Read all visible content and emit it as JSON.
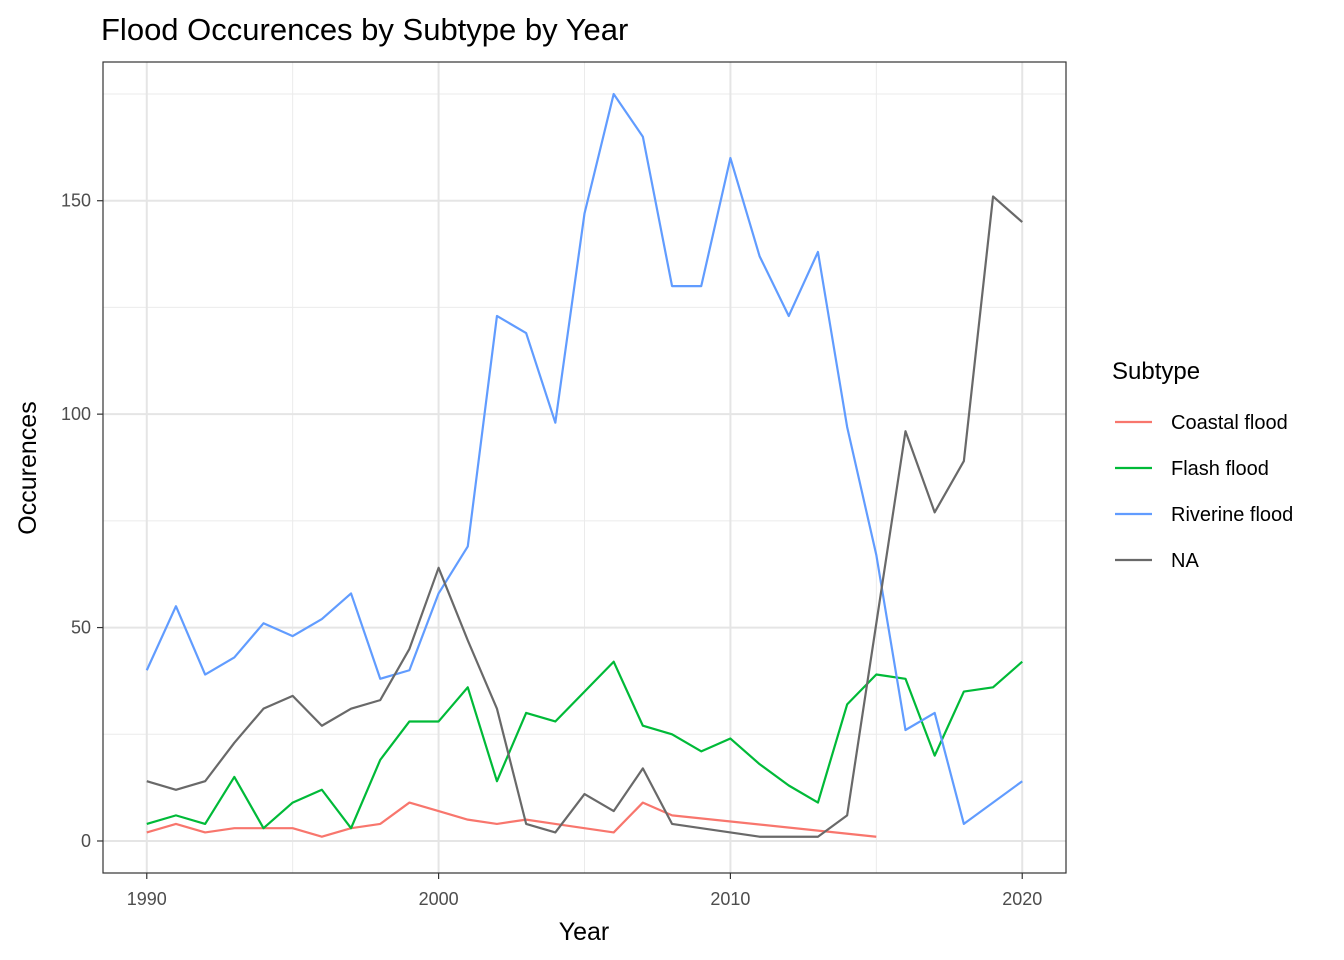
{
  "chart_data": {
    "type": "line",
    "title": "Flood Occurences by Subtype by Year",
    "xlabel": "Year",
    "ylabel": "Occurences",
    "xlim": [
      1988.5,
      2021.5
    ],
    "ylim": [
      -7.5,
      182.5
    ],
    "x_ticks": [
      1990,
      2000,
      2010,
      2020
    ],
    "y_ticks": [
      0,
      50,
      100,
      150
    ],
    "grid": true,
    "legend": {
      "title": "Subtype",
      "position": "right"
    },
    "series": [
      {
        "name": "Coastal flood",
        "color": "#F8766D",
        "x": [
          1990,
          1991,
          1992,
          1993,
          1994,
          1995,
          1996,
          1997,
          1998,
          1999,
          2000,
          2001,
          2002,
          2003,
          2004,
          2005,
          2006,
          2007,
          2008,
          2015
        ],
        "values": [
          2,
          4,
          2,
          3,
          3,
          3,
          1,
          3,
          4,
          9,
          7,
          5,
          4,
          5,
          4,
          3,
          2,
          9,
          6,
          1
        ]
      },
      {
        "name": "Flash flood",
        "color": "#00BA38",
        "x": [
          1990,
          1991,
          1992,
          1993,
          1994,
          1995,
          1996,
          1997,
          1998,
          1999,
          2000,
          2001,
          2002,
          2003,
          2004,
          2005,
          2006,
          2007,
          2008,
          2009,
          2010,
          2011,
          2012,
          2013,
          2014,
          2015,
          2016,
          2017,
          2018,
          2019,
          2020
        ],
        "values": [
          4,
          6,
          4,
          15,
          3,
          9,
          12,
          3,
          19,
          28,
          28,
          36,
          14,
          30,
          28,
          35,
          42,
          27,
          25,
          21,
          24,
          18,
          13,
          9,
          32,
          39,
          38,
          20,
          35,
          36,
          42
        ]
      },
      {
        "name": "Riverine flood",
        "color": "#619CFF",
        "x": [
          1990,
          1991,
          1992,
          1993,
          1994,
          1995,
          1996,
          1997,
          1998,
          1999,
          2000,
          2001,
          2002,
          2003,
          2004,
          2005,
          2006,
          2007,
          2008,
          2009,
          2010,
          2011,
          2012,
          2013,
          2014,
          2015,
          2016,
          2017,
          2018,
          2020
        ],
        "values": [
          40,
          55,
          39,
          43,
          51,
          48,
          52,
          58,
          38,
          40,
          58,
          69,
          123,
          119,
          98,
          147,
          175,
          165,
          130,
          130,
          160,
          137,
          123,
          138,
          97,
          67,
          26,
          30,
          4,
          14
        ]
      },
      {
        "name": "NA",
        "color": "#696969",
        "x": [
          1990,
          1991,
          1992,
          1993,
          1994,
          1995,
          1996,
          1997,
          1998,
          1999,
          2000,
          2001,
          2002,
          2003,
          2004,
          2005,
          2006,
          2007,
          2008,
          2011,
          2012,
          2013,
          2014,
          2016,
          2017,
          2018,
          2019,
          2020
        ],
        "values": [
          14,
          12,
          14,
          23,
          31,
          34,
          27,
          31,
          33,
          45,
          64,
          47,
          31,
          4,
          2,
          11,
          7,
          17,
          4,
          1,
          1,
          1,
          6,
          96,
          77,
          89,
          151,
          145
        ]
      }
    ]
  }
}
